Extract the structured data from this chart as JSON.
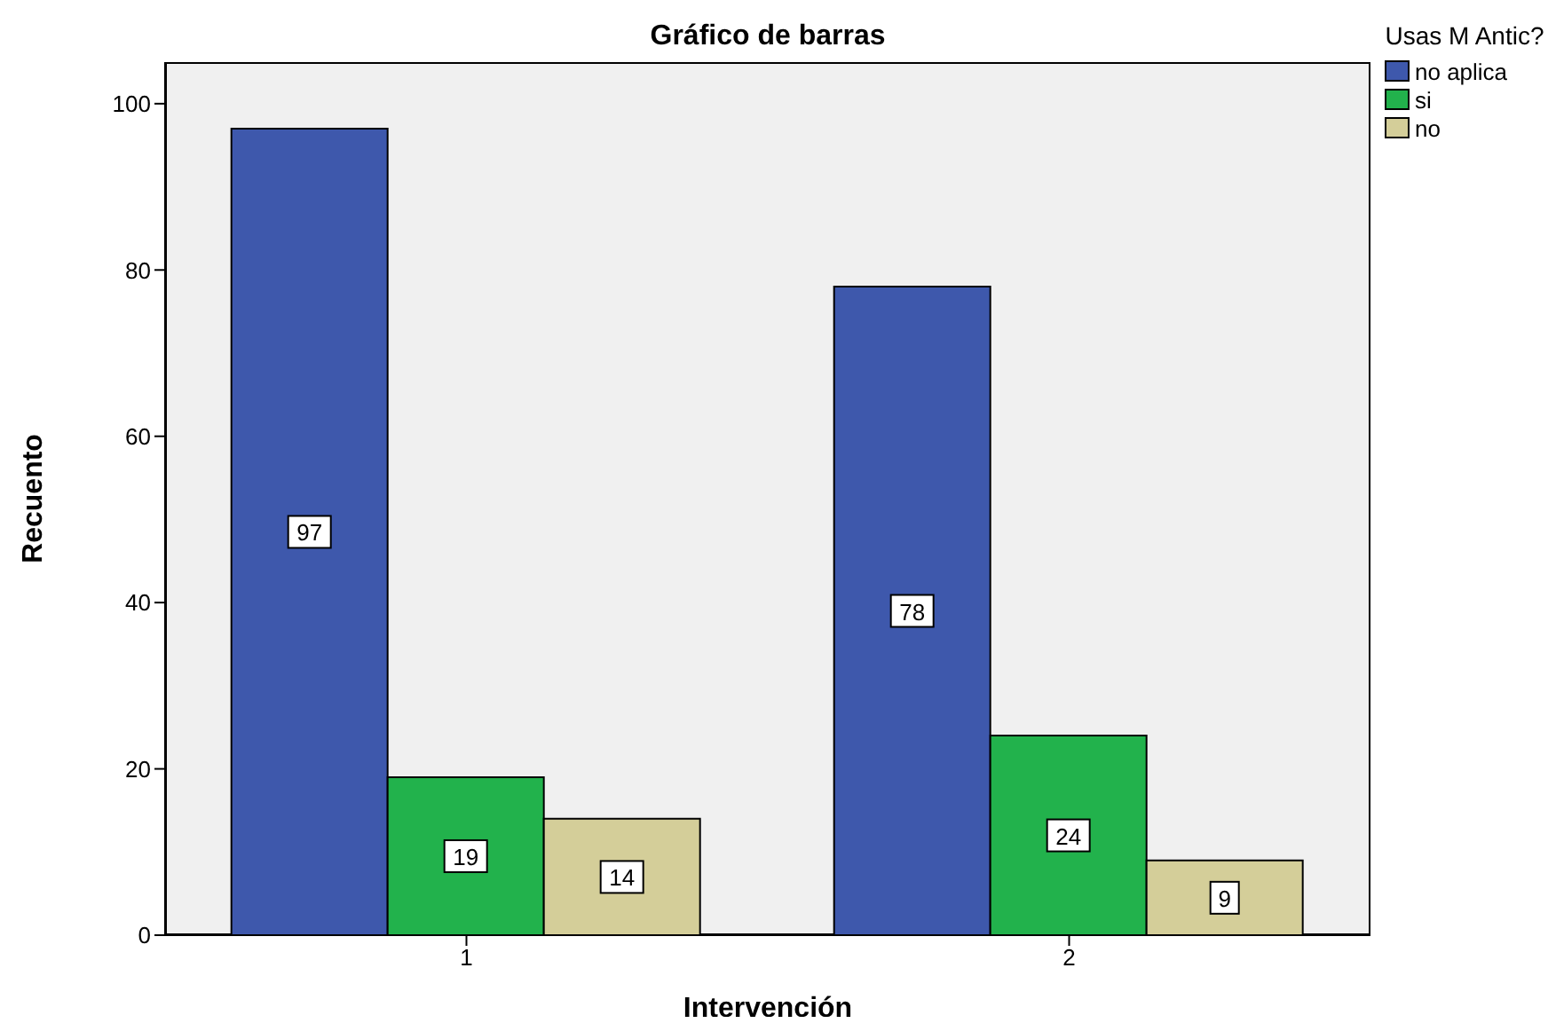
{
  "chart_data": {
    "type": "bar",
    "title": "Gráfico de barras",
    "xlabel": "Intervención",
    "ylabel": "Recuento",
    "legend_title": "Usas M Antic?",
    "categories": [
      "1",
      "2"
    ],
    "series": [
      {
        "name": "no aplica",
        "color": "#3e58ac",
        "values": [
          97,
          78
        ]
      },
      {
        "name": "si",
        "color": "#22b24c",
        "values": [
          19,
          24
        ]
      },
      {
        "name": "no",
        "color": "#d4ce99",
        "values": [
          14,
          9
        ]
      }
    ],
    "ylim": [
      0,
      105
    ],
    "yticks": [
      0,
      20,
      40,
      60,
      80,
      100
    ],
    "grid": false,
    "legend": "top right",
    "data_labels": true
  }
}
